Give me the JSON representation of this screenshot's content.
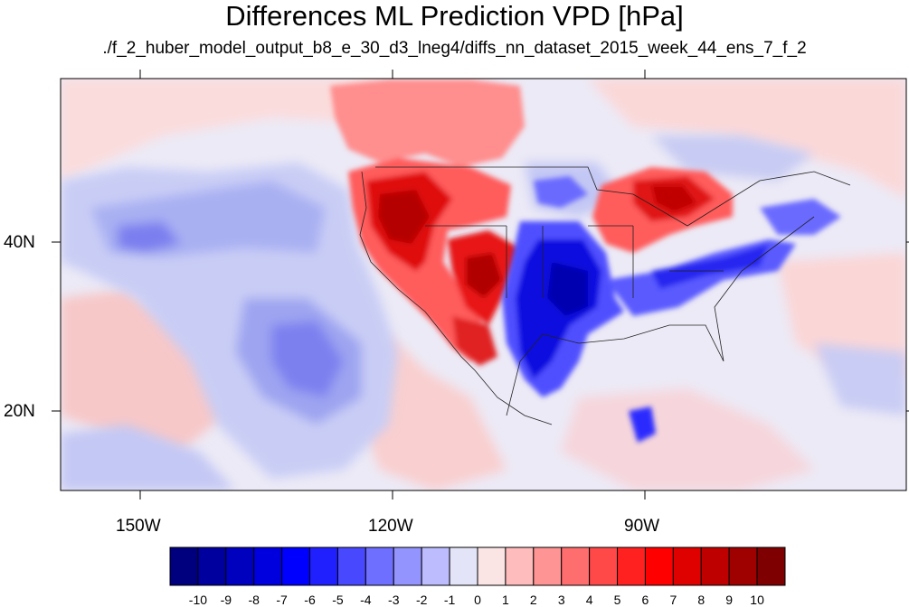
{
  "title": "Differences ML Prediction VPD [hPa]",
  "subtitle": "./f_2_huber_model_output_b8_e_30_d3_lneg4/diffs_nn_dataset_2015_week_44_ens_7_f_2",
  "lat_labels": [
    "40N",
    "20N"
  ],
  "lon_labels": [
    "150W",
    "120W",
    "90W"
  ],
  "colorbar": {
    "labels": [
      "-10",
      "-9",
      "-8",
      "-7",
      "-6",
      "-5",
      "-4",
      "-3",
      "-2",
      "-1",
      "0",
      "1",
      "2",
      "3",
      "4",
      "5",
      "6",
      "7",
      "8",
      "9",
      "10"
    ],
    "colors": [
      "#00007f",
      "#00009f",
      "#0000bf",
      "#0000df",
      "#0000ff",
      "#2020ff",
      "#4848ff",
      "#6e6eff",
      "#9494ff",
      "#bcbcff",
      "#e4e4f8",
      "#fbe4e4",
      "#ffbcbc",
      "#ff9494",
      "#ff6e6e",
      "#ff4848",
      "#ff2020",
      "#ff0000",
      "#df0000",
      "#bf0000",
      "#9f0000",
      "#7f0000"
    ]
  }
}
